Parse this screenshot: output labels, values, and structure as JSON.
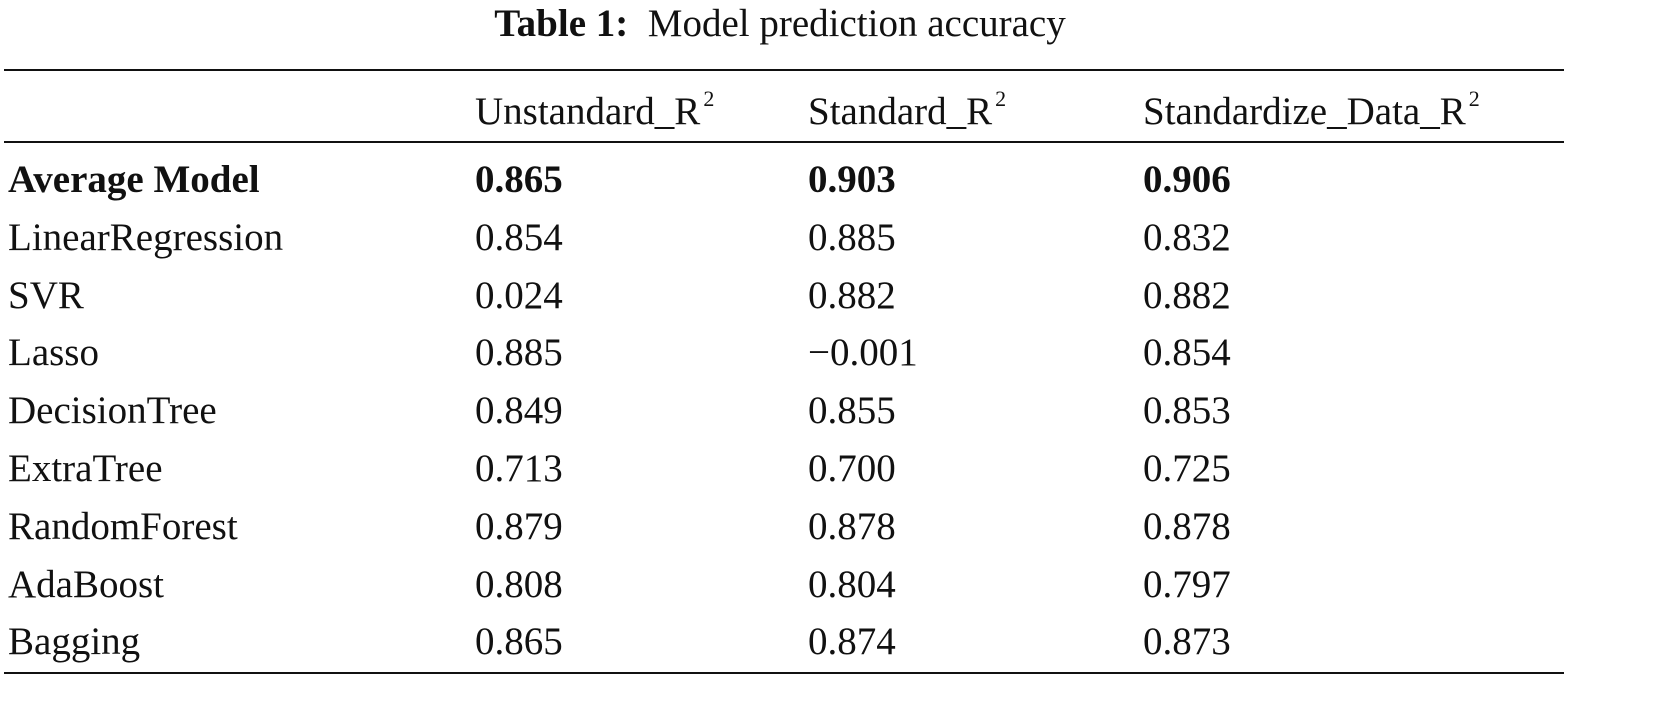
{
  "caption": {
    "label": "Table 1:",
    "title": "Model prediction accuracy"
  },
  "table": {
    "columns": [
      {
        "text": "Unstandard_R",
        "sup": "2"
      },
      {
        "text": "Standard_R",
        "sup": "2"
      },
      {
        "text": "Standardize_Data_R",
        "sup": "2"
      }
    ],
    "rows": [
      [
        "Average Model",
        "0.865",
        "0.903",
        "0.906"
      ],
      [
        "LinearRegression",
        "0.854",
        "0.885",
        "0.832"
      ],
      [
        "SVR",
        "0.024",
        "0.882",
        "0.882"
      ],
      [
        "Lasso",
        "0.885",
        "−0.001",
        "0.854"
      ],
      [
        "DecisionTree",
        "0.849",
        "0.855",
        "0.853"
      ],
      [
        "ExtraTree",
        "0.713",
        "0.700",
        "0.725"
      ],
      [
        "RandomForest",
        "0.879",
        "0.878",
        "0.878"
      ],
      [
        "AdaBoost",
        "0.808",
        "0.804",
        "0.797"
      ],
      [
        "Bagging",
        "0.865",
        "0.874",
        "0.873"
      ]
    ]
  }
}
